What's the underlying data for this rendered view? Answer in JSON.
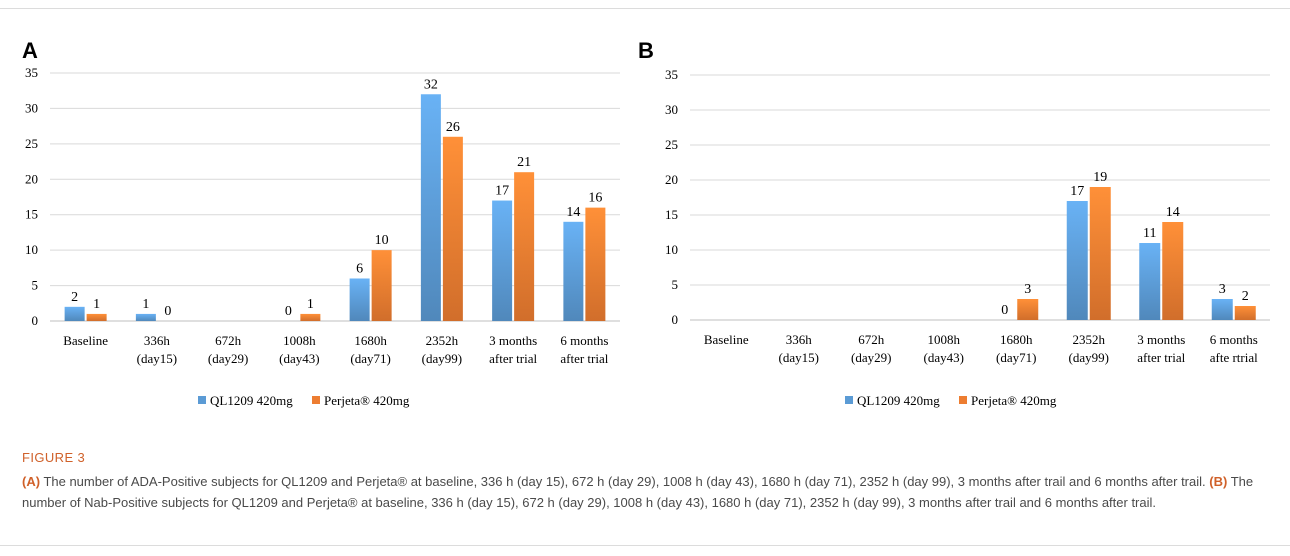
{
  "figure": {
    "title": "FIGURE 3",
    "caption_a_label": "(A)",
    "caption_a_text": "The number of ADA-Positive subjects for QL1209 and Perjeta® at baseline, 336 h (day 15), 672 h (day 29), 1008 h (day 43), 1680 h (day 71), 2352 h (day 99), 3 months after trail and 6 months after trail.",
    "caption_b_label": "(B)",
    "caption_b_text": "The number of Nab-Positive subjects for QL1209 and Perjeta® at baseline, 336 h (day 15), 672 h (day 29), 1008 h (day 43), 1680 h (day 71), 2352 h (day 99), 3 months after trail and 6 months after trail."
  },
  "colors": {
    "blue": "#5b9bd5",
    "orange": "#ed7d31"
  },
  "chart_data": [
    {
      "panel": "A",
      "type": "bar",
      "categories": [
        [
          "Baseline"
        ],
        [
          "336h",
          "(day15)"
        ],
        [
          "672h",
          "(day29)"
        ],
        [
          "1008h",
          "(day43)"
        ],
        [
          "1680h",
          "(day71)"
        ],
        [
          "2352h",
          "(day99)"
        ],
        [
          "3 months",
          "after trial"
        ],
        [
          "6 months",
          "after trial"
        ]
      ],
      "series": [
        {
          "name": "QL1209 420mg",
          "color": "#5b9bd5",
          "values": [
            2,
            1,
            null,
            0,
            6,
            32,
            17,
            14
          ]
        },
        {
          "name": "Perjeta® 420mg",
          "color": "#ed7d31",
          "values": [
            1,
            0,
            null,
            1,
            10,
            26,
            21,
            16
          ]
        }
      ],
      "ylim": [
        0,
        35
      ],
      "yticks": [
        0,
        5,
        10,
        15,
        20,
        25,
        30,
        35
      ],
      "legend": "bottom"
    },
    {
      "panel": "B",
      "type": "bar",
      "categories": [
        [
          "Baseline"
        ],
        [
          "336h",
          "(day15)"
        ],
        [
          "672h",
          "(day29)"
        ],
        [
          "1008h",
          "(day43)"
        ],
        [
          "1680h",
          "(day71)"
        ],
        [
          "2352h",
          "(day99)"
        ],
        [
          "3 months",
          "after trial"
        ],
        [
          "6 months",
          "afte rtrial"
        ]
      ],
      "series": [
        {
          "name": "QL1209 420mg",
          "color": "#5b9bd5",
          "values": [
            null,
            null,
            null,
            null,
            0,
            17,
            11,
            3
          ]
        },
        {
          "name": "Perjeta® 420mg",
          "color": "#ed7d31",
          "values": [
            null,
            null,
            null,
            null,
            3,
            19,
            14,
            2
          ]
        }
      ],
      "ylim": [
        0,
        35
      ],
      "yticks": [
        0,
        5,
        10,
        15,
        20,
        25,
        30,
        35
      ],
      "legend": "bottom"
    }
  ]
}
